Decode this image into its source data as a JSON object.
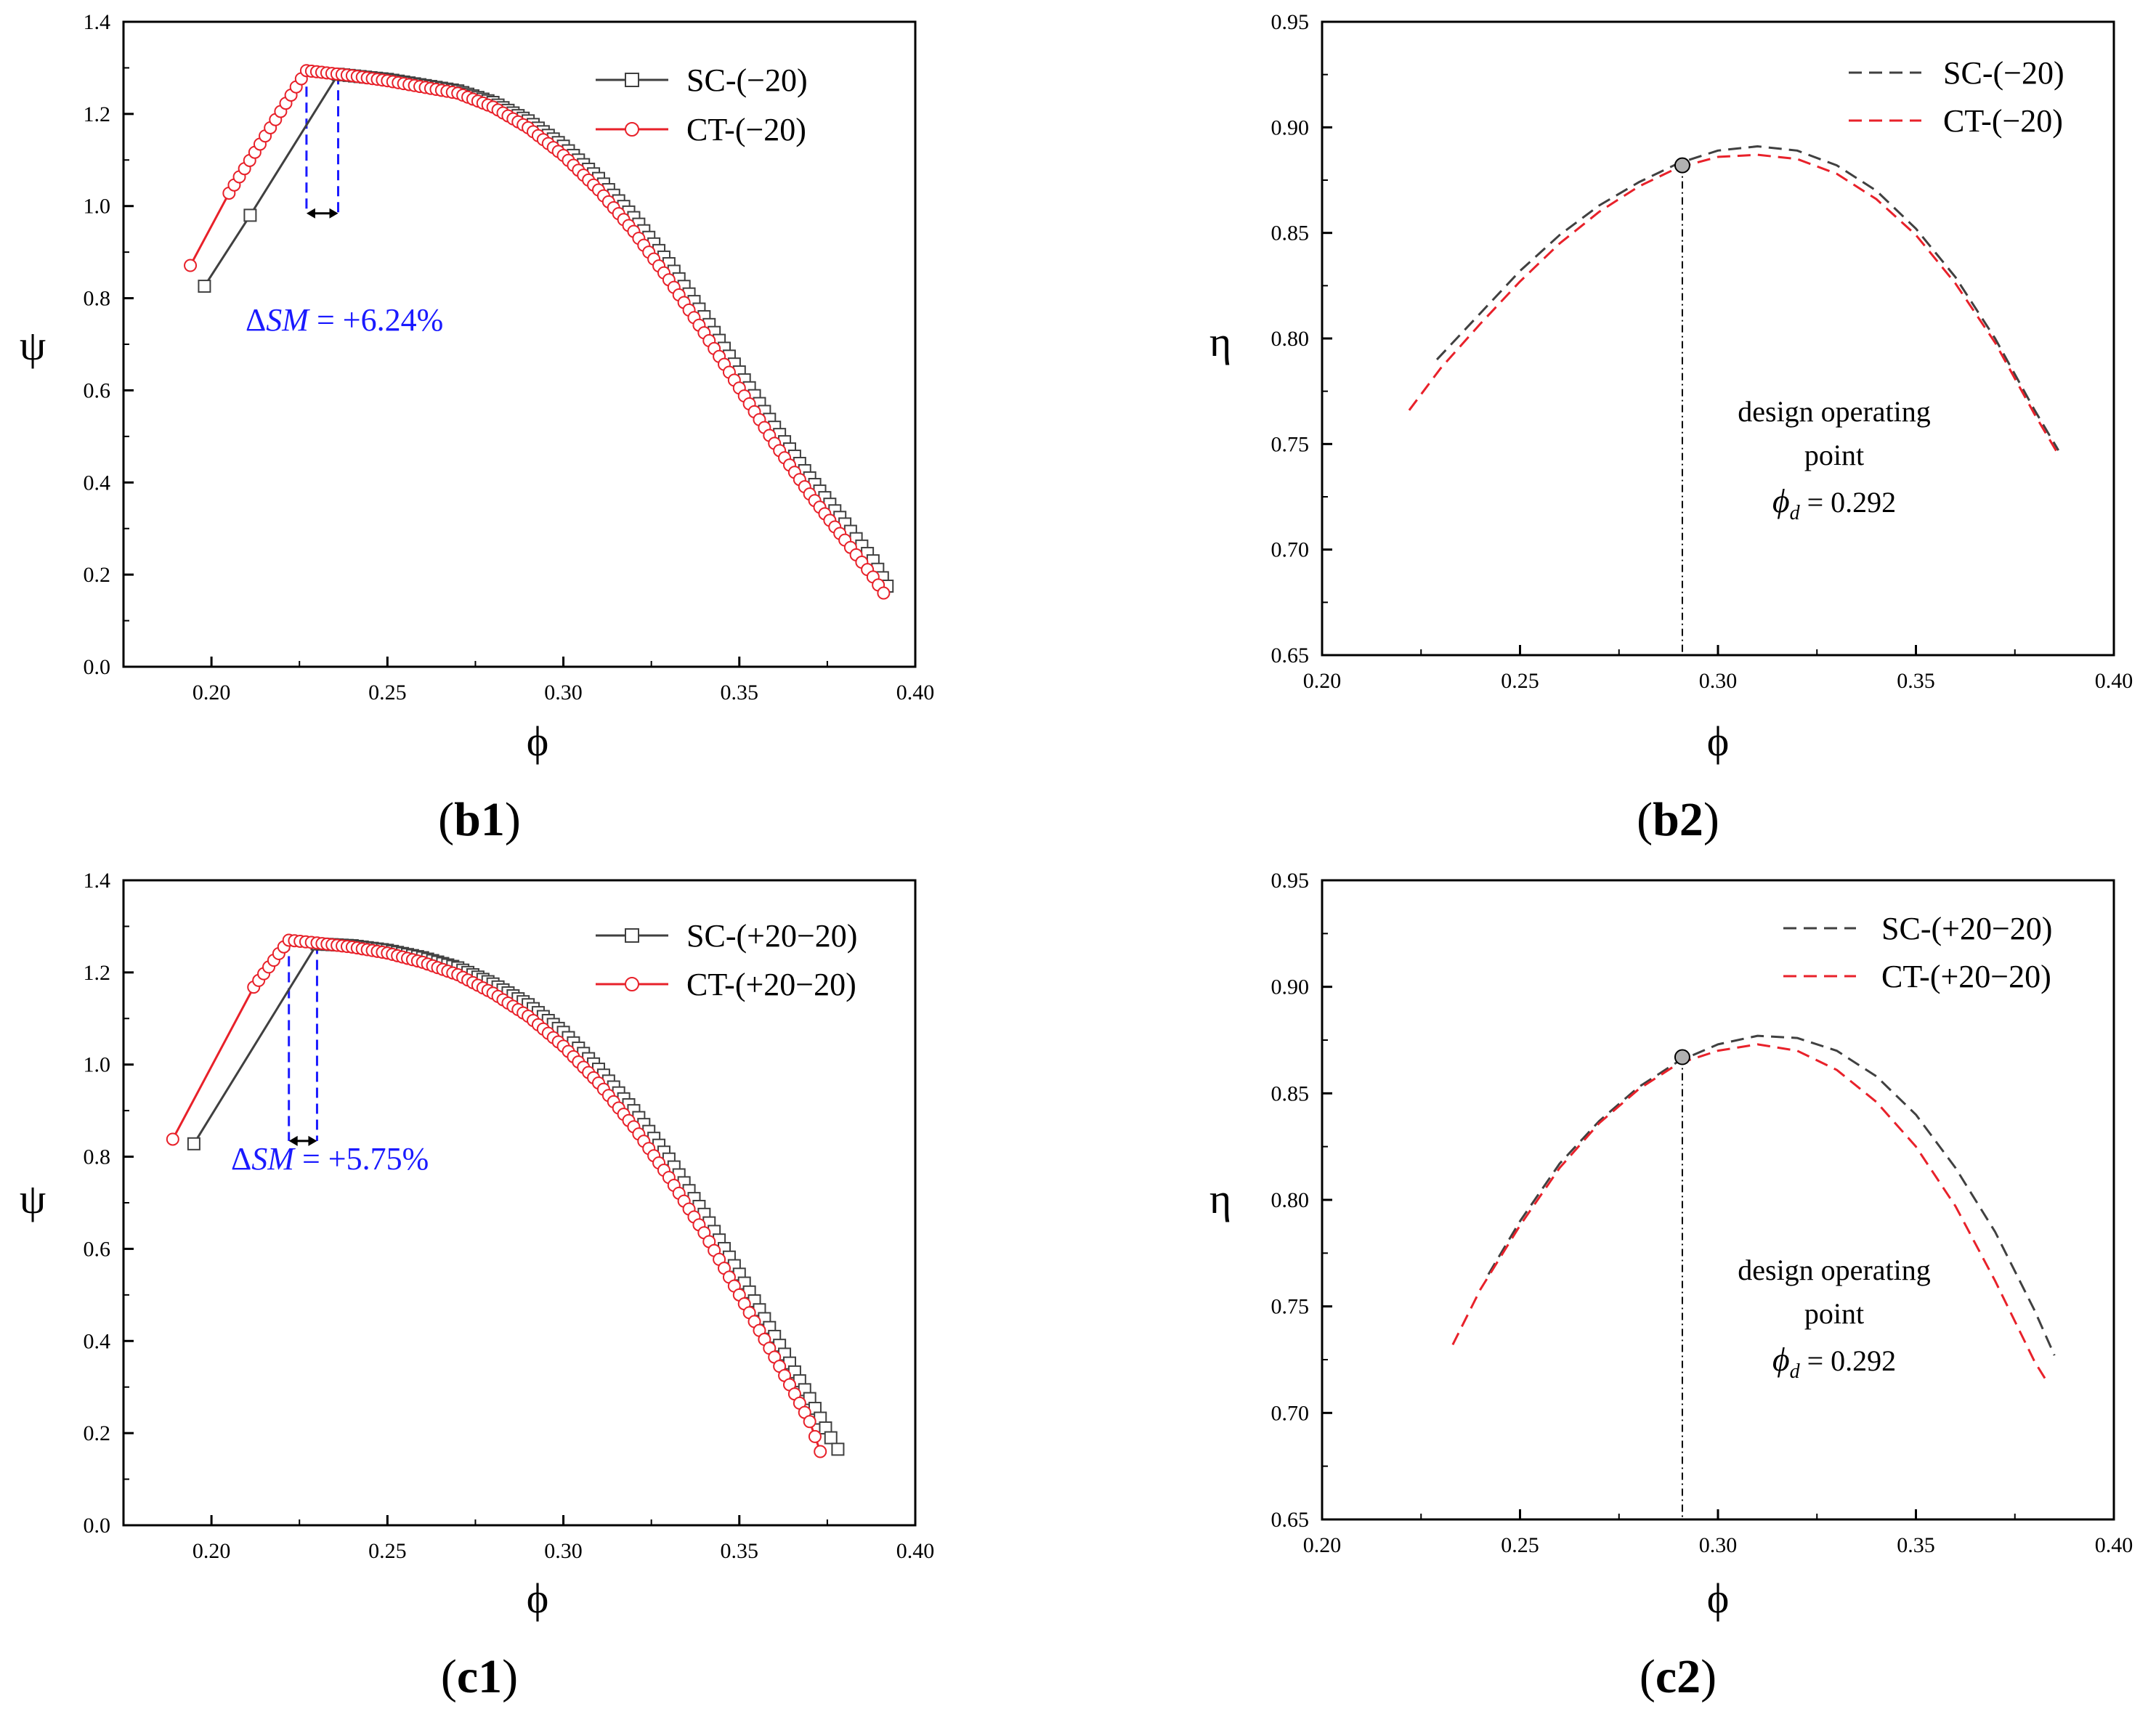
{
  "colors": {
    "sc": "#404040",
    "ct": "#e8212a",
    "sm": "#1a1aff",
    "marker_fill": "#ffffff",
    "design_point": "#b0b0b0"
  },
  "chart_data": [
    {
      "id": "b1",
      "type": "line",
      "panel_label": "b1",
      "xlabel": "ϕ",
      "ylabel": "ψ",
      "xlim": [
        0.175,
        0.4
      ],
      "ylim": [
        0.0,
        1.4
      ],
      "xticks": [
        0.2,
        0.25,
        0.3,
        0.35,
        0.4
      ],
      "yticks": [
        0.0,
        0.2,
        0.4,
        0.6,
        0.8,
        1.0,
        1.2,
        1.4
      ],
      "xtick_labels": [
        "0.20",
        "0.25",
        "0.30",
        "0.35",
        "0.40"
      ],
      "ytick_labels": [
        "0.0",
        "0.2",
        "0.4",
        "0.6",
        "0.8",
        "1.0",
        "1.2",
        "1.4"
      ],
      "legend_position": "top-right",
      "series": [
        {
          "name": "SC-(−20)",
          "color_key": "sc",
          "style": "solid",
          "marker": "square",
          "x": [
            0.198,
            0.211,
            0.236,
            0.25,
            0.27,
            0.28,
            0.29,
            0.3,
            0.31,
            0.32,
            0.33,
            0.34,
            0.35,
            0.36,
            0.37,
            0.38,
            0.388,
            0.392
          ],
          "y": [
            0.826,
            0.98,
            1.286,
            1.275,
            1.25,
            1.225,
            1.185,
            1.13,
            1.06,
            0.975,
            0.875,
            0.76,
            0.64,
            0.52,
            0.41,
            0.31,
            0.23,
            0.175
          ]
        },
        {
          "name": "CT-(−20)",
          "color_key": "ct",
          "style": "solid",
          "marker": "circle",
          "x": [
            0.194,
            0.205,
            0.227,
            0.24,
            0.25,
            0.27,
            0.28,
            0.29,
            0.3,
            0.31,
            0.32,
            0.33,
            0.34,
            0.35,
            0.36,
            0.37,
            0.38,
            0.388,
            0.391
          ],
          "y": [
            0.871,
            1.028,
            1.294,
            1.283,
            1.272,
            1.245,
            1.215,
            1.17,
            1.11,
            1.035,
            0.945,
            0.84,
            0.725,
            0.605,
            0.485,
            0.375,
            0.275,
            0.195,
            0.16
          ]
        }
      ],
      "sm_x": [
        0.227,
        0.236
      ],
      "annotation": {
        "prefix": "Δ",
        "italic": "SM",
        "suffix": " = +6.24%"
      }
    },
    {
      "id": "b2",
      "type": "line",
      "panel_label": "b2",
      "xlabel": "ϕ",
      "ylabel": "η",
      "xlim": [
        0.2,
        0.4
      ],
      "ylim": [
        0.65,
        0.95
      ],
      "xticks": [
        0.2,
        0.25,
        0.3,
        0.35,
        0.4
      ],
      "yticks": [
        0.65,
        0.7,
        0.75,
        0.8,
        0.85,
        0.9,
        0.95
      ],
      "xtick_labels": [
        "0.20",
        "0.25",
        "0.30",
        "0.35",
        "0.40"
      ],
      "ytick_labels": [
        "0.65",
        "0.70",
        "0.75",
        "0.80",
        "0.85",
        "0.90",
        "0.95"
      ],
      "legend_position": "top-right",
      "series": [
        {
          "name": "SC-(−20)",
          "color_key": "sc",
          "style": "dashed",
          "x": [
            0.229,
            0.24,
            0.25,
            0.26,
            0.27,
            0.28,
            0.29,
            0.3,
            0.31,
            0.32,
            0.33,
            0.34,
            0.35,
            0.36,
            0.37,
            0.38,
            0.386
          ],
          "y": [
            0.79,
            0.812,
            0.832,
            0.849,
            0.863,
            0.874,
            0.883,
            0.889,
            0.891,
            0.889,
            0.882,
            0.87,
            0.852,
            0.829,
            0.8,
            0.766,
            0.747
          ]
        },
        {
          "name": "CT-(−20)",
          "color_key": "ct",
          "style": "dashed",
          "x": [
            0.222,
            0.23,
            0.24,
            0.25,
            0.26,
            0.27,
            0.28,
            0.29,
            0.3,
            0.31,
            0.32,
            0.33,
            0.34,
            0.35,
            0.36,
            0.37,
            0.38,
            0.386
          ],
          "y": [
            0.766,
            0.786,
            0.807,
            0.827,
            0.845,
            0.86,
            0.872,
            0.881,
            0.886,
            0.887,
            0.885,
            0.878,
            0.866,
            0.849,
            0.826,
            0.798,
            0.764,
            0.745
          ]
        }
      ],
      "design_point": {
        "x": 0.291,
        "y": 0.882
      },
      "annotation": {
        "line1": "design operating",
        "line2": "point",
        "phi": "ϕ",
        "sub": "d",
        "value": " = 0.292"
      }
    },
    {
      "id": "c1",
      "type": "line",
      "panel_label": "c1",
      "xlabel": "ϕ",
      "ylabel": "ψ",
      "xlim": [
        0.175,
        0.4
      ],
      "ylim": [
        0.0,
        1.4
      ],
      "xticks": [
        0.2,
        0.25,
        0.3,
        0.35,
        0.4
      ],
      "yticks": [
        0.0,
        0.2,
        0.4,
        0.6,
        0.8,
        1.0,
        1.2,
        1.4
      ],
      "xtick_labels": [
        "0.20",
        "0.25",
        "0.30",
        "0.35",
        "0.40"
      ],
      "ytick_labels": [
        "0.0",
        "0.2",
        "0.4",
        "0.6",
        "0.8",
        "1.0",
        "1.2",
        "1.4"
      ],
      "legend_position": "top-right",
      "series": [
        {
          "name": "SC-(+20−20)",
          "color_key": "sc",
          "style": "solid",
          "marker": "square",
          "x": [
            0.195,
            0.23,
            0.24,
            0.25,
            0.26,
            0.27,
            0.28,
            0.29,
            0.3,
            0.31,
            0.32,
            0.33,
            0.34,
            0.35,
            0.36,
            0.37,
            0.376,
            0.378
          ],
          "y": [
            0.828,
            1.262,
            1.258,
            1.248,
            1.232,
            1.21,
            1.175,
            1.13,
            1.07,
            0.99,
            0.9,
            0.795,
            0.675,
            0.545,
            0.41,
            0.275,
            0.19,
            0.165
          ]
        },
        {
          "name": "CT-(+20−20)",
          "color_key": "ct",
          "style": "solid",
          "marker": "circle",
          "x": [
            0.189,
            0.212,
            0.222,
            0.23,
            0.24,
            0.25,
            0.26,
            0.27,
            0.28,
            0.29,
            0.3,
            0.31,
            0.32,
            0.33,
            0.34,
            0.35,
            0.36,
            0.37,
            0.373
          ],
          "y": [
            0.838,
            1.168,
            1.27,
            1.264,
            1.255,
            1.242,
            1.222,
            1.195,
            1.155,
            1.105,
            1.04,
            0.96,
            0.865,
            0.755,
            0.635,
            0.5,
            0.365,
            0.225,
            0.16
          ]
        }
      ],
      "sm_x": [
        0.222,
        0.23
      ],
      "annotation": {
        "prefix": "Δ",
        "italic": "SM",
        "suffix": " = +5.75%"
      }
    },
    {
      "id": "c2",
      "type": "line",
      "panel_label": "c2",
      "xlabel": "ϕ",
      "ylabel": "η",
      "xlim": [
        0.2,
        0.4
      ],
      "ylim": [
        0.65,
        0.95
      ],
      "xticks": [
        0.2,
        0.25,
        0.3,
        0.35,
        0.4
      ],
      "yticks": [
        0.65,
        0.7,
        0.75,
        0.8,
        0.85,
        0.9,
        0.95
      ],
      "xtick_labels": [
        "0.20",
        "0.25",
        "0.30",
        "0.35",
        "0.40"
      ],
      "ytick_labels": [
        "0.65",
        "0.70",
        "0.75",
        "0.80",
        "0.85",
        "0.90",
        "0.95"
      ],
      "legend_position": "top-right",
      "series": [
        {
          "name": "SC-(+20−20)",
          "color_key": "sc",
          "style": "dashed",
          "x": [
            0.242,
            0.25,
            0.26,
            0.27,
            0.28,
            0.29,
            0.3,
            0.31,
            0.32,
            0.33,
            0.34,
            0.35,
            0.36,
            0.37,
            0.38,
            0.385
          ],
          "y": [
            0.765,
            0.79,
            0.817,
            0.837,
            0.853,
            0.865,
            0.873,
            0.877,
            0.876,
            0.87,
            0.858,
            0.84,
            0.815,
            0.785,
            0.748,
            0.727
          ]
        },
        {
          "name": "CT-(+20−20)",
          "color_key": "ct",
          "style": "dashed",
          "x": [
            0.233,
            0.24,
            0.25,
            0.26,
            0.27,
            0.28,
            0.29,
            0.3,
            0.31,
            0.32,
            0.33,
            0.34,
            0.35,
            0.36,
            0.37,
            0.38,
            0.383
          ],
          "y": [
            0.732,
            0.758,
            0.788,
            0.815,
            0.836,
            0.852,
            0.864,
            0.87,
            0.873,
            0.87,
            0.861,
            0.846,
            0.825,
            0.797,
            0.762,
            0.724,
            0.715
          ]
        }
      ],
      "design_point": {
        "x": 0.291,
        "y": 0.867
      },
      "annotation": {
        "line1": "design operating",
        "line2": "point",
        "phi": "ϕ",
        "sub": "d",
        "value": " = 0.292"
      }
    }
  ]
}
